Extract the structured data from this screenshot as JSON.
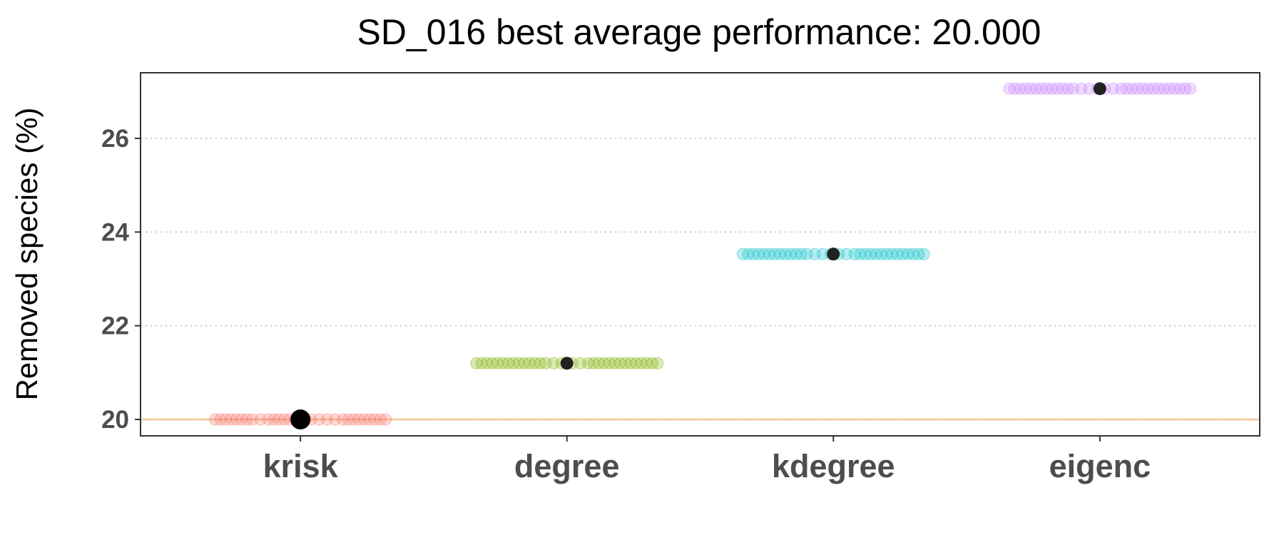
{
  "chart_data": {
    "type": "scatter",
    "title": "SD_016 best average performance: 20.000",
    "xlabel": "",
    "ylabel": "Removed species (%)",
    "categories": [
      "krisk",
      "degree",
      "kdegree",
      "eigenc"
    ],
    "yticks": [
      20,
      22,
      24,
      26
    ],
    "ytick_labels": [
      "20",
      "22",
      "24",
      "26"
    ],
    "ylim": [
      19.65,
      27.4
    ],
    "grid": "horizontal dotted major gridlines",
    "reference_line": 20.0,
    "series": [
      {
        "category": "krisk",
        "color": "#F8766D",
        "y": 20.0,
        "mean": 20.0,
        "offsets": [
          -0.32,
          -0.3,
          -0.28,
          -0.26,
          -0.24,
          -0.22,
          -0.2,
          -0.18,
          -0.15,
          -0.12,
          -0.1,
          -0.08,
          -0.06,
          -0.04,
          -0.02,
          0.0,
          0.02,
          0.04,
          0.07,
          0.1,
          0.13,
          0.16,
          0.18,
          0.2,
          0.22,
          0.24,
          0.26,
          0.28,
          0.3,
          0.32
        ]
      },
      {
        "category": "degree",
        "color": "#7CAE00",
        "y": 21.2,
        "mean": 21.2,
        "offsets": [
          -0.34,
          -0.32,
          -0.3,
          -0.28,
          -0.26,
          -0.24,
          -0.22,
          -0.2,
          -0.18,
          -0.16,
          -0.14,
          -0.12,
          -0.1,
          -0.08,
          -0.05,
          -0.02,
          0.02,
          0.05,
          0.08,
          0.1,
          0.12,
          0.14,
          0.16,
          0.18,
          0.2,
          0.22,
          0.24,
          0.26,
          0.28,
          0.3,
          0.32,
          0.34
        ]
      },
      {
        "category": "kdegree",
        "color": "#00BFC4",
        "y": 23.53,
        "mean": 23.53,
        "offsets": [
          -0.34,
          -0.32,
          -0.3,
          -0.28,
          -0.26,
          -0.24,
          -0.22,
          -0.2,
          -0.18,
          -0.16,
          -0.14,
          -0.12,
          -0.1,
          -0.07,
          -0.04,
          -0.01,
          0.02,
          0.05,
          0.08,
          0.1,
          0.12,
          0.14,
          0.16,
          0.18,
          0.2,
          0.22,
          0.24,
          0.26,
          0.28,
          0.3,
          0.32,
          0.34
        ]
      },
      {
        "category": "eigenc",
        "color": "#C77CFF",
        "y": 27.06,
        "mean": 27.06,
        "offsets": [
          -0.34,
          -0.32,
          -0.3,
          -0.28,
          -0.26,
          -0.24,
          -0.22,
          -0.2,
          -0.18,
          -0.16,
          -0.14,
          -0.12,
          -0.1,
          -0.07,
          -0.04,
          -0.01,
          0.02,
          0.05,
          0.08,
          0.1,
          0.12,
          0.14,
          0.16,
          0.18,
          0.2,
          0.22,
          0.24,
          0.26,
          0.28,
          0.3,
          0.32,
          0.34
        ]
      }
    ],
    "best_category": "krisk",
    "mean_marker_color": "#222222",
    "best_marker_color": "#000000",
    "reference_line_color": "#F5C89A",
    "grid_color": "#bdbdbd",
    "axis_text_color": "#4d4d4d"
  }
}
